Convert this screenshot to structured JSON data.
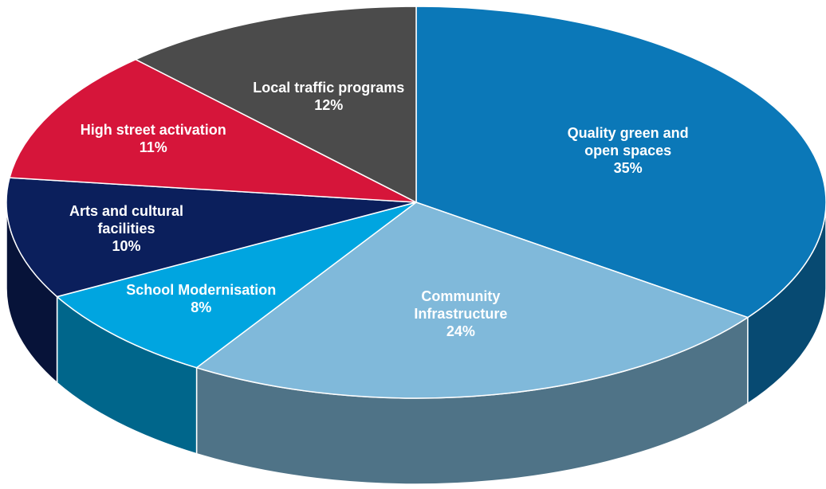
{
  "chart_data": {
    "type": "pie",
    "categories": [
      "Quality green and open spaces",
      "Community Infrastructure",
      "School Modernisation",
      "Arts and cultural facilities",
      "High street activation",
      "Local traffic programs"
    ],
    "values": [
      35,
      24,
      8,
      10,
      11,
      12
    ],
    "value_labels": [
      "35%",
      "24%",
      "8%",
      "10%",
      "11%",
      "12%"
    ],
    "colors": [
      "#0b78b8",
      "#80b9da",
      "#00a5e0",
      "#0b1f5c",
      "#d6153a",
      "#4b4b4b"
    ]
  }
}
